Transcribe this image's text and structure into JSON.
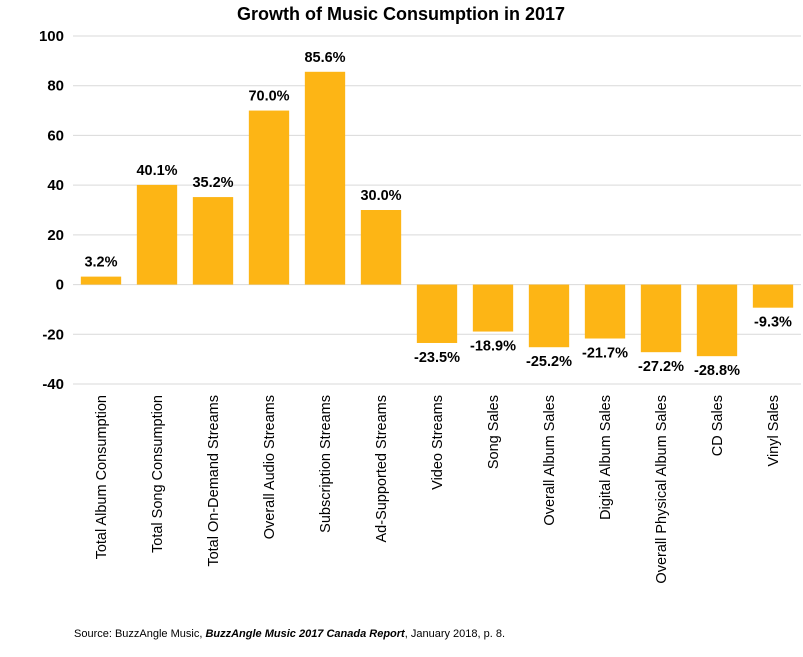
{
  "chart_data": {
    "type": "bar",
    "title": "Growth of Music Consumption in 2017",
    "xlabel": "",
    "ylabel": "",
    "ylim": [
      -40,
      100
    ],
    "yticks": [
      100,
      80,
      60,
      40,
      20,
      0,
      -20,
      -40
    ],
    "grid": true,
    "legend": "none",
    "bar_color": "#FDB515",
    "categories": [
      "Total Album Consumption",
      "Total Song Consumption",
      "Total On-Demand Streams",
      "Overall Audio Streams",
      "Subscription Streams",
      "Ad-Supported Streams",
      "Video Streams",
      "Song Sales",
      "Overall Album Sales",
      "Digital Album Sales",
      "Overall Physical Album Sales",
      "CD Sales",
      "Vinyl Sales"
    ],
    "values": [
      3.2,
      40.1,
      35.2,
      70.0,
      85.6,
      30.0,
      -23.5,
      -18.9,
      -25.2,
      -21.7,
      -27.2,
      -28.8,
      -9.3
    ],
    "data_labels": [
      "3.2%",
      "40.1%",
      "35.2%",
      "70.0%",
      "85.6%",
      "30.0%",
      "-23.5%",
      "-18.9%",
      "-25.2%",
      "-21.7%",
      "-27.2%",
      "-28.8%",
      "-9.3%"
    ]
  },
  "source": {
    "prefix": "Source: BuzzAngle Music, ",
    "report": "BuzzAngle Music 2017 Canada Report",
    "suffix": ", January 2018, p. 8."
  }
}
